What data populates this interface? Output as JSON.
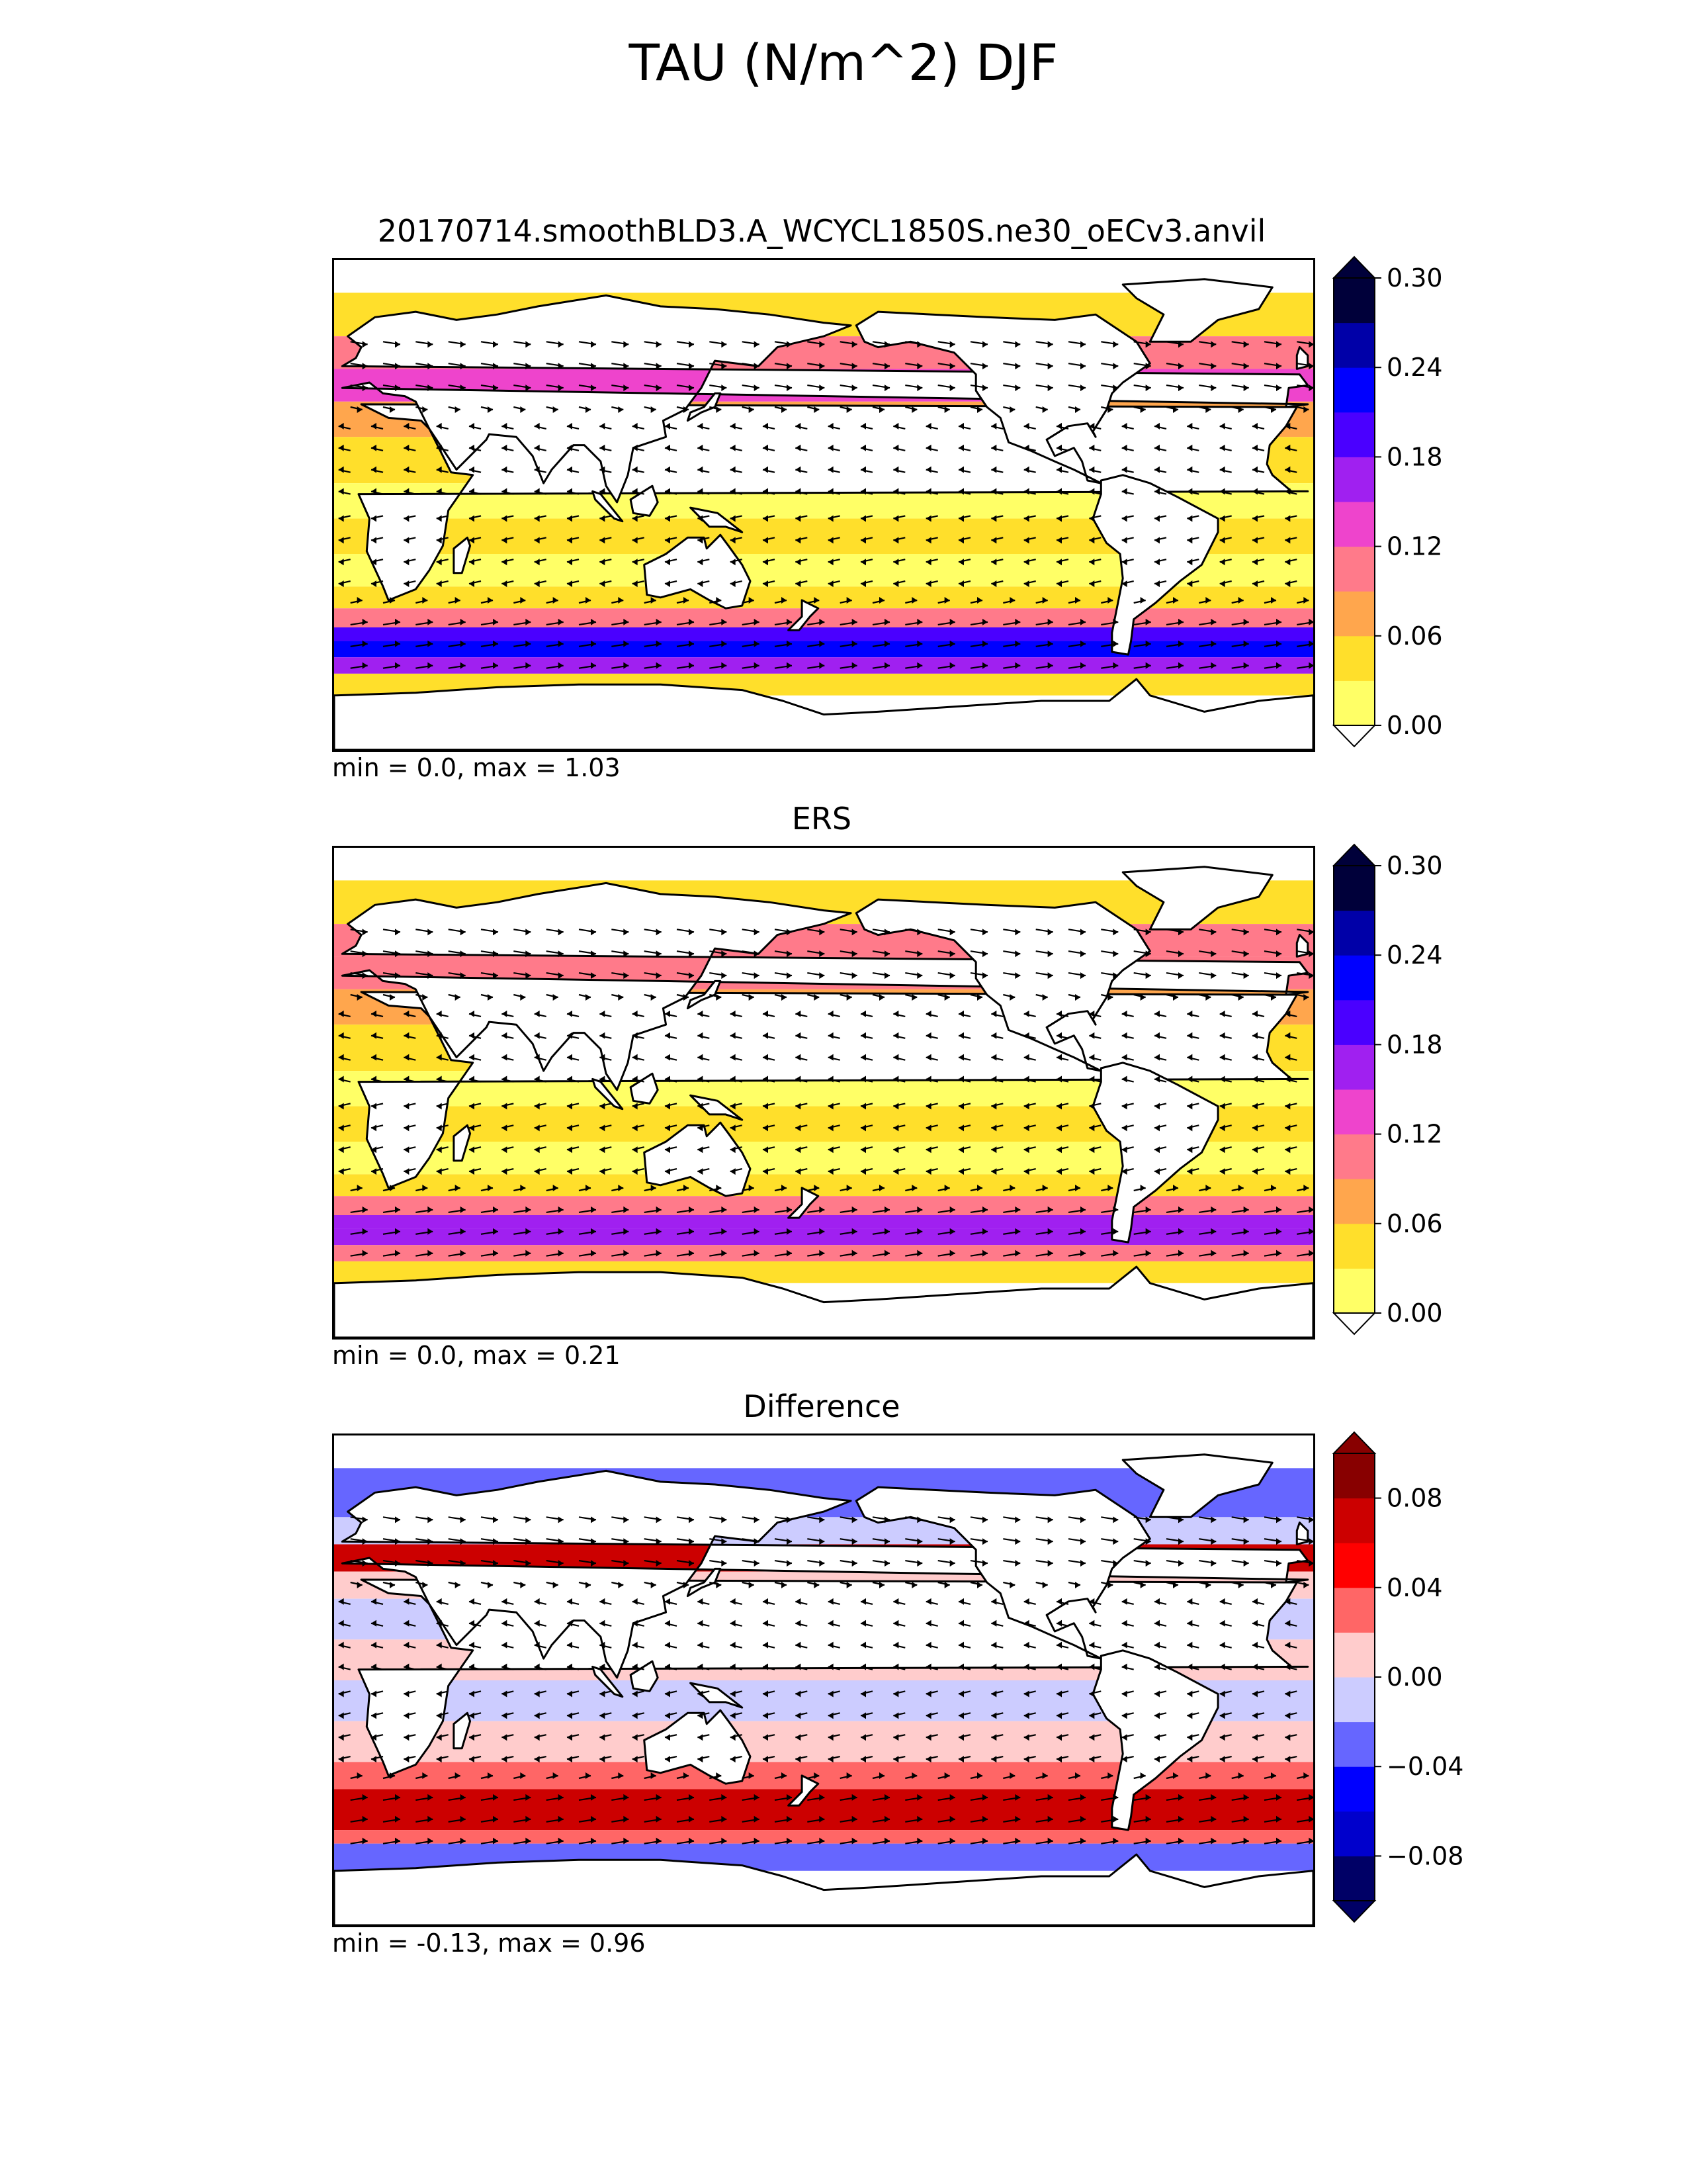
{
  "figure": {
    "suptitle": "TAU (N/m^2) DJF"
  },
  "colors": {
    "tau_levels": [
      "#ffff66",
      "#ffdf2b",
      "#ffa64d",
      "#ff7a8a",
      "#ee44cc",
      "#a020f0",
      "#4a00ff",
      "#0000ff",
      "#0000a8",
      "#00003a"
    ],
    "diff_levels": [
      "#000066",
      "#0000cc",
      "#0000ff",
      "#6666ff",
      "#ccccff",
      "#ffcccc",
      "#ff6666",
      "#ff0000",
      "#cc0000",
      "#880000"
    ],
    "land_fill": "#ffffff",
    "coast": "#000000"
  },
  "chart_data": [
    {
      "type": "heatmap",
      "title": "20170714.smoothBLD3.A_WCYCL1850S.ne30_oECv3.anvil",
      "stats": "min = 0.0, max = 1.03",
      "colorbar": {
        "ticks": [
          "0.00",
          "0.06",
          "0.12",
          "0.18",
          "0.24",
          "0.30"
        ],
        "levels": [
          0,
          0.03,
          0.06,
          0.09,
          0.12,
          0.15,
          0.18,
          0.21,
          0.24,
          0.27,
          0.3
        ],
        "extend": "both"
      },
      "vectors": "wind stress arrows",
      "xrange_deg": [
        0,
        360
      ],
      "yrange_deg": [
        -90,
        90
      ]
    },
    {
      "type": "heatmap",
      "title": "ERS",
      "stats": "min = 0.0, max = 0.21",
      "colorbar": {
        "ticks": [
          "0.00",
          "0.06",
          "0.12",
          "0.18",
          "0.24",
          "0.30"
        ],
        "levels": [
          0,
          0.03,
          0.06,
          0.09,
          0.12,
          0.15,
          0.18,
          0.21,
          0.24,
          0.27,
          0.3
        ],
        "extend": "both"
      },
      "vectors": "wind stress arrows",
      "xrange_deg": [
        0,
        360
      ],
      "yrange_deg": [
        -90,
        90
      ]
    },
    {
      "type": "heatmap",
      "title": "Difference",
      "stats": "min = -0.13, max = 0.96",
      "colorbar": {
        "ticks": [
          "−0.08",
          "−0.04",
          "0.00",
          "0.04",
          "0.08"
        ],
        "levels": [
          -0.1,
          -0.08,
          -0.06,
          -0.04,
          -0.02,
          0,
          0.02,
          0.04,
          0.06,
          0.08,
          0.1
        ],
        "extend": "both"
      },
      "vectors": "wind stress difference arrows",
      "xrange_deg": [
        0,
        360
      ],
      "yrange_deg": [
        -90,
        90
      ]
    }
  ]
}
